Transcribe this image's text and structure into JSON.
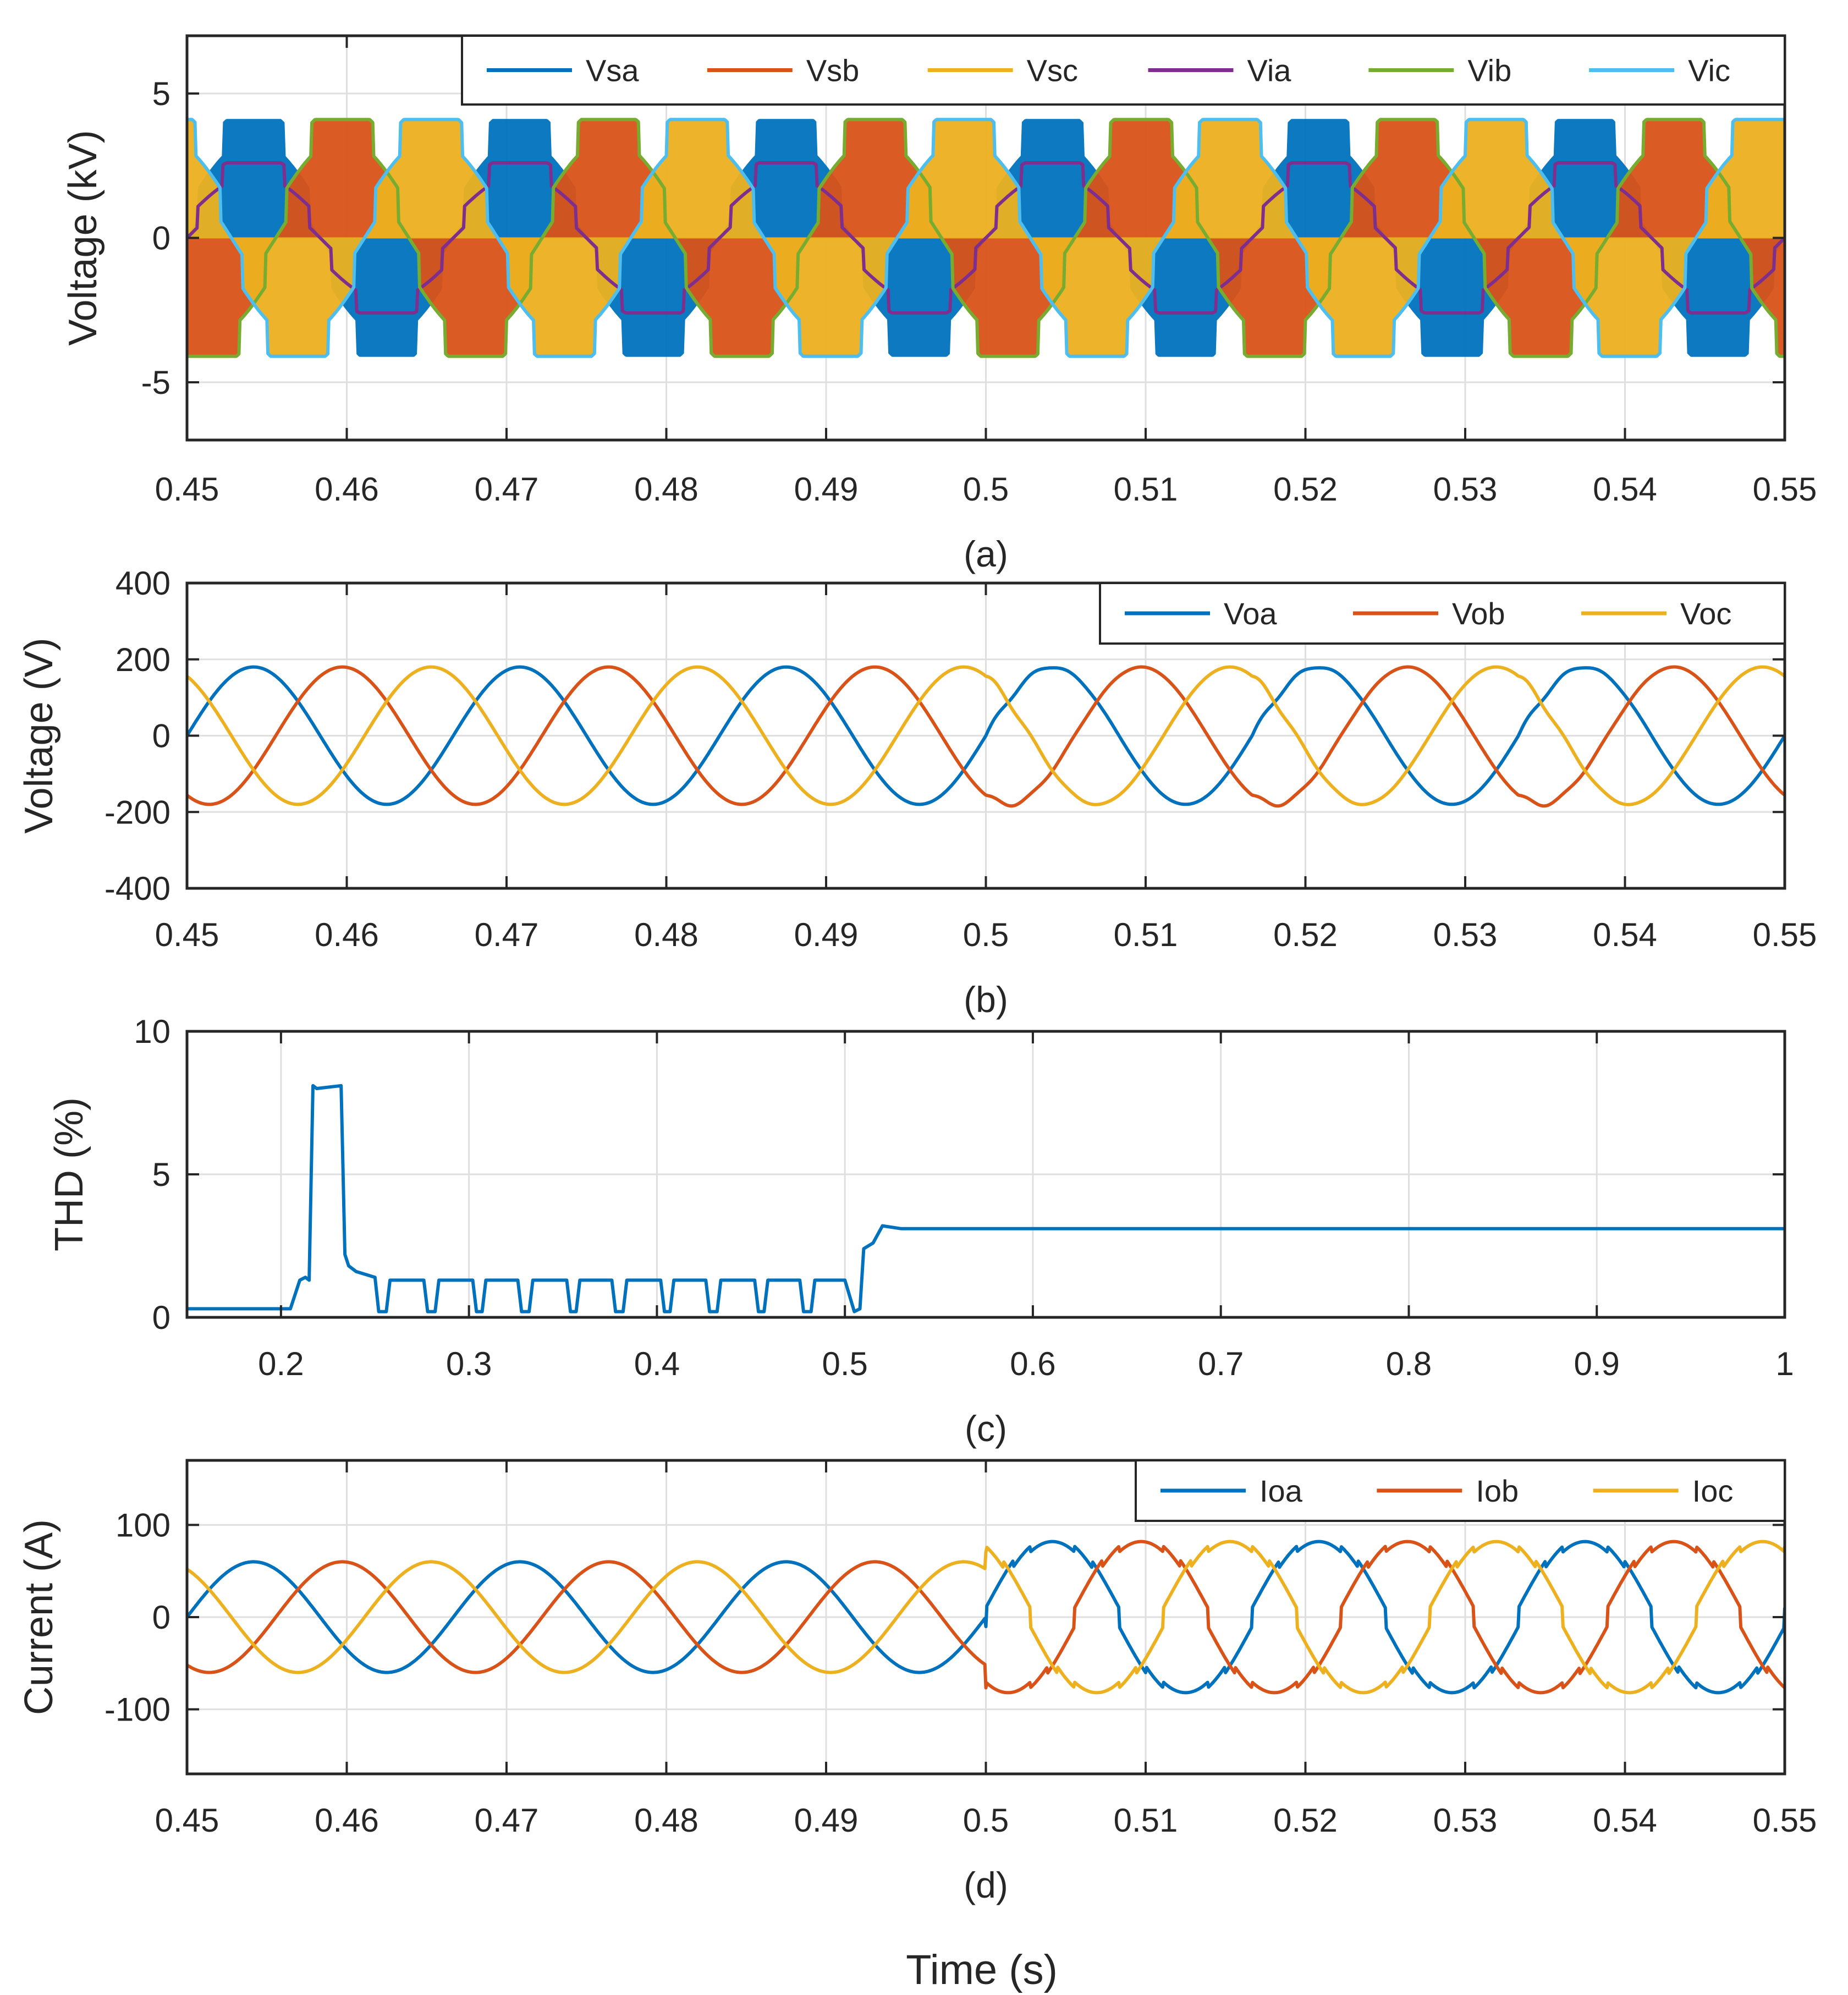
{
  "figure": {
    "xlabel": "Time (s)"
  },
  "colors": {
    "blue": "#0072BD",
    "orange": "#D95319",
    "yellow": "#EDB120",
    "purple": "#7E2F8E",
    "green": "#77AC30",
    "cyan": "#4DBEEE"
  },
  "chart_data": [
    {
      "id": "a",
      "type": "line",
      "caption": "(a)",
      "xlabel": "",
      "ylabel": "Voltage (kV)",
      "xlim": [
        0.45,
        0.55
      ],
      "ylim": [
        -7,
        7
      ],
      "xticks": [
        0.45,
        0.46,
        0.47,
        0.48,
        0.49,
        0.5,
        0.51,
        0.52,
        0.53,
        0.54,
        0.55
      ],
      "xtick_labels": [
        "0.45",
        "0.46",
        "0.47",
        "0.48",
        "0.49",
        "0.5",
        "0.51",
        "0.52",
        "0.53",
        "0.54",
        "0.55"
      ],
      "yticks": [
        -5,
        0,
        5
      ],
      "ytick_labels": [
        "-5",
        "0",
        "5"
      ],
      "legend_position": "top-right",
      "series": [
        {
          "name": "Vsa",
          "color": "#0072BD",
          "kind": "switching",
          "amplitude": 4.1,
          "phase_deg": 0,
          "frequency_hz": 60
        },
        {
          "name": "Vsb",
          "color": "#D95319",
          "kind": "switching",
          "amplitude": 4.1,
          "phase_deg": -120,
          "frequency_hz": 60
        },
        {
          "name": "Vsc",
          "color": "#EDB120",
          "kind": "switching",
          "amplitude": 4.1,
          "phase_deg": 120,
          "frequency_hz": 60
        },
        {
          "name": "Via",
          "color": "#7E2F8E",
          "kind": "stepped",
          "amplitude": 2.6,
          "phase_deg": 0,
          "frequency_hz": 60
        },
        {
          "name": "Vib",
          "color": "#77AC30",
          "kind": "stepped",
          "amplitude": 4.1,
          "phase_deg": -120,
          "frequency_hz": 60
        },
        {
          "name": "Vic",
          "color": "#4DBEEE",
          "kind": "stepped",
          "amplitude": 4.1,
          "phase_deg": 120,
          "frequency_hz": 60
        }
      ]
    },
    {
      "id": "b",
      "type": "line",
      "caption": "(b)",
      "xlabel": "",
      "ylabel": "Voltage (V)",
      "xlim": [
        0.45,
        0.55
      ],
      "ylim": [
        -400,
        400
      ],
      "xticks": [
        0.45,
        0.46,
        0.47,
        0.48,
        0.49,
        0.5,
        0.51,
        0.52,
        0.53,
        0.54,
        0.55
      ],
      "xtick_labels": [
        "0.45",
        "0.46",
        "0.47",
        "0.48",
        "0.49",
        "0.5",
        "0.51",
        "0.52",
        "0.53",
        "0.54",
        "0.55"
      ],
      "yticks": [
        -400,
        -200,
        0,
        200,
        400
      ],
      "ytick_labels": [
        "-400",
        "-200",
        "0",
        "200",
        "400"
      ],
      "legend_position": "top-right",
      "series": [
        {
          "name": "Voa",
          "color": "#0072BD",
          "kind": "sine",
          "amplitude": 180,
          "phase_deg": 0,
          "frequency_hz": 60
        },
        {
          "name": "Vob",
          "color": "#D95319",
          "kind": "sine",
          "amplitude": 180,
          "phase_deg": -120,
          "frequency_hz": 60
        },
        {
          "name": "Voc",
          "color": "#EDB120",
          "kind": "sine",
          "amplitude": 180,
          "phase_deg": 120,
          "frequency_hz": 60
        }
      ]
    },
    {
      "id": "c",
      "type": "line",
      "caption": "(c)",
      "xlabel": "",
      "ylabel": "THD (%)",
      "xlim": [
        0.15,
        1.0
      ],
      "ylim": [
        0,
        10
      ],
      "xticks": [
        0.2,
        0.3,
        0.4,
        0.5,
        0.6,
        0.7,
        0.8,
        0.9,
        1.0
      ],
      "xtick_labels": [
        "0.2",
        "0.3",
        "0.4",
        "0.5",
        "0.6",
        "0.7",
        "0.8",
        "0.9",
        "1"
      ],
      "yticks": [
        0,
        5,
        10
      ],
      "ytick_labels": [
        "0",
        "5",
        "10"
      ],
      "series": [
        {
          "name": "THD",
          "color": "#0072BD",
          "kind": "points",
          "x": [
            0.15,
            0.205,
            0.21,
            0.213,
            0.215,
            0.217,
            0.219,
            0.232,
            0.234,
            0.236,
            0.24,
            0.245,
            0.25,
            0.252,
            0.256,
            0.258,
            0.276,
            0.278,
            0.282,
            0.284,
            0.302,
            0.304,
            0.307,
            0.309,
            0.326,
            0.328,
            0.332,
            0.334,
            0.352,
            0.354,
            0.357,
            0.359,
            0.376,
            0.378,
            0.382,
            0.384,
            0.402,
            0.404,
            0.407,
            0.409,
            0.426,
            0.428,
            0.432,
            0.434,
            0.452,
            0.454,
            0.457,
            0.459,
            0.476,
            0.478,
            0.482,
            0.484,
            0.5,
            0.505,
            0.508,
            0.51,
            0.515,
            0.52,
            0.53,
            1.0
          ],
          "y": [
            0.3,
            0.3,
            1.3,
            1.4,
            1.3,
            8.1,
            8.0,
            8.1,
            2.2,
            1.8,
            1.6,
            1.5,
            1.4,
            0.2,
            0.2,
            1.3,
            1.3,
            0.2,
            0.2,
            1.3,
            1.3,
            0.2,
            0.2,
            1.3,
            1.3,
            0.2,
            0.2,
            1.3,
            1.3,
            0.2,
            0.2,
            1.3,
            1.3,
            0.2,
            0.2,
            1.3,
            1.3,
            0.2,
            0.2,
            1.3,
            1.3,
            0.2,
            0.2,
            1.3,
            1.3,
            0.2,
            0.2,
            1.3,
            1.3,
            0.2,
            0.2,
            1.3,
            1.3,
            0.2,
            0.3,
            2.4,
            2.6,
            3.2,
            3.1,
            3.1
          ]
        }
      ]
    },
    {
      "id": "d",
      "type": "line",
      "caption": "(d)",
      "xlabel": "Time (s)",
      "ylabel": "Current (A)",
      "xlim": [
        0.45,
        0.55
      ],
      "ylim": [
        -170,
        170
      ],
      "xticks": [
        0.45,
        0.46,
        0.47,
        0.48,
        0.49,
        0.5,
        0.51,
        0.52,
        0.53,
        0.54,
        0.55
      ],
      "xtick_labels": [
        "0.45",
        "0.46",
        "0.47",
        "0.48",
        "0.49",
        "0.5",
        "0.51",
        "0.52",
        "0.53",
        "0.54",
        "0.55"
      ],
      "yticks": [
        -100,
        0,
        100
      ],
      "ytick_labels": [
        "-100",
        "0",
        "100"
      ],
      "legend_position": "top-right",
      "series": [
        {
          "name": "Ioa",
          "color": "#0072BD",
          "kind": "current",
          "amplitude": 60,
          "amplitude_after": 85,
          "step_time": 0.5,
          "phase_deg": 0,
          "frequency_hz": 60
        },
        {
          "name": "Iob",
          "color": "#D95319",
          "kind": "current",
          "amplitude": 60,
          "amplitude_after": 85,
          "step_time": 0.5,
          "phase_deg": -120,
          "frequency_hz": 60
        },
        {
          "name": "Ioc",
          "color": "#EDB120",
          "kind": "current",
          "amplitude": 60,
          "amplitude_after": 85,
          "step_time": 0.5,
          "phase_deg": 120,
          "frequency_hz": 60
        }
      ]
    }
  ]
}
